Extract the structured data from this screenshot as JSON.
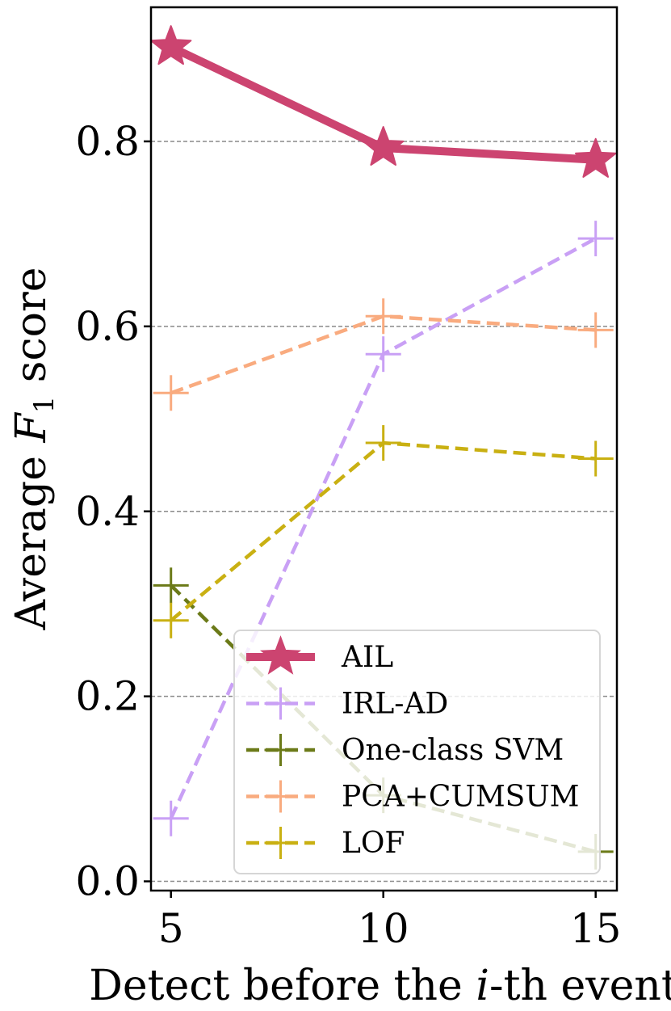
{
  "chart_data": {
    "type": "line",
    "title": "",
    "xlabel": "Detect before the i-th event",
    "xlabel_parts": [
      "Detect before the ",
      "i",
      "-th event"
    ],
    "ylabel": "Average F1 score",
    "ylabel_parts": [
      "Average ",
      "F",
      "1",
      " score"
    ],
    "x": [
      5,
      10,
      15
    ],
    "xticks": [
      "5",
      "10",
      "15"
    ],
    "xlim": [
      4.53,
      15.5
    ],
    "yticks": [
      "0.0",
      "0.2",
      "0.4",
      "0.6",
      "0.8"
    ],
    "ylim": [
      -0.01,
      0.945
    ],
    "grid": "horizontal dashed",
    "legend_position": "lower-right",
    "series": [
      {
        "name": "AIL",
        "values": [
          0.902,
          0.793,
          0.78
        ],
        "color": "#cc4470",
        "dash": "solid",
        "marker": "star"
      },
      {
        "name": "IRL-AD",
        "values": [
          0.068,
          0.57,
          0.695
        ],
        "color": "#c9a0f5",
        "dash": "dashed",
        "marker": "plus"
      },
      {
        "name": "One-class SVM",
        "values": [
          0.32,
          0.093,
          0.032
        ],
        "color": "#6b7a18",
        "dash": "dashed",
        "marker": "plus"
      },
      {
        "name": "PCA+CUMSUM",
        "values": [
          0.528,
          0.611,
          0.596
        ],
        "color": "#f9ab7f",
        "dash": "dashed",
        "marker": "plus"
      },
      {
        "name": "LOF",
        "values": [
          0.282,
          0.474,
          0.457
        ],
        "color": "#c9b012",
        "dash": "dashed",
        "marker": "plus"
      }
    ]
  }
}
